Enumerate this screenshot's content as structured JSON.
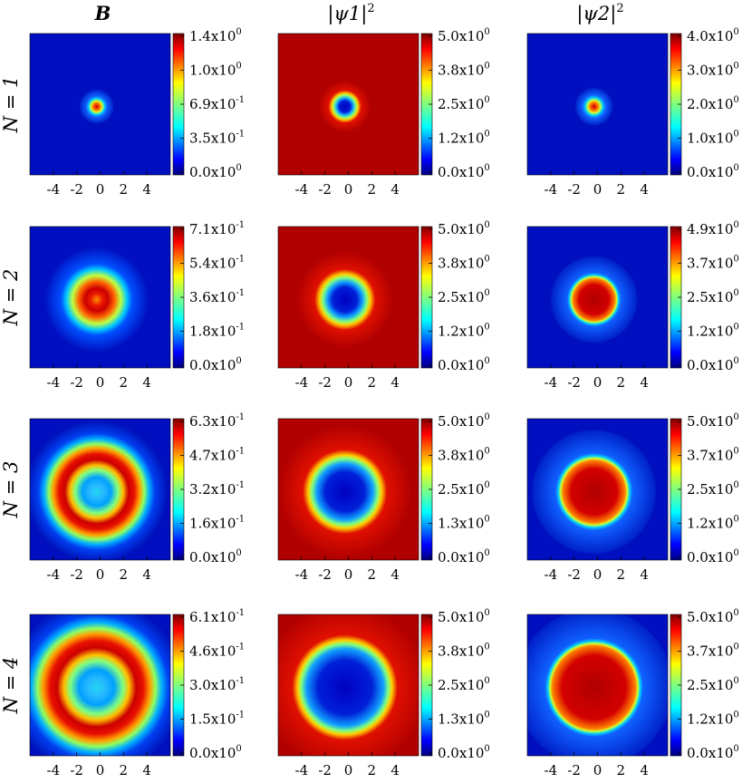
{
  "columns": [
    {
      "key": "B",
      "title": "B",
      "sup": ""
    },
    {
      "key": "psi1",
      "title": "|ψ1|",
      "sup": "2"
    },
    {
      "key": "psi2",
      "title": "|ψ2|",
      "sup": "2"
    }
  ],
  "rows": [
    {
      "label": "N = 1"
    },
    {
      "label": "N = 2"
    },
    {
      "label": "N = 3"
    },
    {
      "label": "N = 4"
    }
  ],
  "chart_data": {
    "type": "heatmap",
    "colormap": "jet",
    "x_ticks": [
      -4,
      -2,
      0,
      2,
      4
    ],
    "x_tick_labels": [
      "-4",
      "-2",
      "0",
      "2",
      "4"
    ],
    "xlim": [
      -6,
      6
    ],
    "ylim": [
      -6,
      6
    ],
    "panels": [
      {
        "row": "N = 1",
        "column": "B",
        "pattern": "disk",
        "inner": 0.0,
        "outer": 0.9,
        "center_value": 1.4,
        "colorbar_ticks": [
          "1.4x10^0",
          "1.0x10^0",
          "6.9x10^-1",
          "3.5x10^-1",
          "0.0x10^0"
        ]
      },
      {
        "row": "N = 1",
        "column": "|ψ1|^2",
        "pattern": "hole",
        "inner": 0.7,
        "outer": 1.4,
        "center_value": 0.0,
        "colorbar_ticks": [
          "5.0x10^0",
          "3.8x10^0",
          "2.5x10^0",
          "1.2x10^0",
          "0.0x10^0"
        ]
      },
      {
        "row": "N = 1",
        "column": "|ψ2|^2",
        "pattern": "disk",
        "inner": 0.0,
        "outer": 1.0,
        "center_value": 4.0,
        "colorbar_ticks": [
          "4.0x10^0",
          "3.0x10^0",
          "2.0x10^0",
          "1.0x10^0",
          "0.0x10^0"
        ]
      },
      {
        "row": "N = 2",
        "column": "B",
        "pattern": "ring",
        "inner": 0.0,
        "outer": 2.8,
        "center_value": 0.71,
        "colorbar_ticks": [
          "7.1x10^-1",
          "5.4x10^-1",
          "3.6x10^-1",
          "1.8x10^-1",
          "0.0x10^0"
        ]
      },
      {
        "row": "N = 2",
        "column": "|ψ1|^2",
        "pattern": "hole",
        "inner": 1.5,
        "outer": 2.6,
        "center_value": 0.0,
        "colorbar_ticks": [
          "5.0x10^0",
          "3.8x10^0",
          "2.5x10^0",
          "1.2x10^0",
          "0.0x10^0"
        ]
      },
      {
        "row": "N = 2",
        "column": "|ψ2|^2",
        "pattern": "disk",
        "inner": 1.5,
        "outer": 2.3,
        "center_value": 4.9,
        "colorbar_ticks": [
          "4.9x10^0",
          "3.7x10^0",
          "2.5x10^0",
          "1.2x10^0",
          "0.0x10^0"
        ]
      },
      {
        "row": "N = 3",
        "column": "B",
        "pattern": "ring",
        "inner": 2.0,
        "outer": 3.8,
        "center_value": 0.32,
        "colorbar_ticks": [
          "6.3x10^-1",
          "4.7x10^-1",
          "3.2x10^-1",
          "1.6x10^-1",
          "0.0x10^0"
        ]
      },
      {
        "row": "N = 3",
        "column": "|ψ1|^2",
        "pattern": "hole",
        "inner": 2.4,
        "outer": 3.6,
        "center_value": 0.0,
        "colorbar_ticks": [
          "5.0x10^0",
          "3.8x10^0",
          "2.5x10^0",
          "1.3x10^0",
          "0.0x10^0"
        ]
      },
      {
        "row": "N = 3",
        "column": "|ψ2|^2",
        "pattern": "disk",
        "inner": 2.3,
        "outer": 3.3,
        "center_value": 5.0,
        "colorbar_ticks": [
          "5.0x10^0",
          "3.7x10^0",
          "2.5x10^0",
          "1.2x10^0",
          "0.0x10^0"
        ]
      },
      {
        "row": "N = 4",
        "column": "B",
        "pattern": "ring",
        "inner": 2.9,
        "outer": 4.7,
        "center_value": 0.3,
        "colorbar_ticks": [
          "6.1x10^-1",
          "4.6x10^-1",
          "3.0x10^-1",
          "1.5x10^-1",
          "0.0x10^0"
        ]
      },
      {
        "row": "N = 4",
        "column": "|ψ1|^2",
        "pattern": "hole",
        "inner": 3.3,
        "outer": 4.5,
        "center_value": 0.0,
        "colorbar_ticks": [
          "5.0x10^0",
          "3.8x10^0",
          "2.5x10^0",
          "1.3x10^0",
          "0.0x10^0"
        ]
      },
      {
        "row": "N = 4",
        "column": "|ψ2|^2",
        "pattern": "disk",
        "inner": 3.2,
        "outer": 4.2,
        "center_value": 5.0,
        "colorbar_ticks": [
          "5.0x10^0",
          "3.7x10^0",
          "2.5x10^0",
          "1.2x10^0",
          "0.0x10^0"
        ]
      }
    ]
  }
}
